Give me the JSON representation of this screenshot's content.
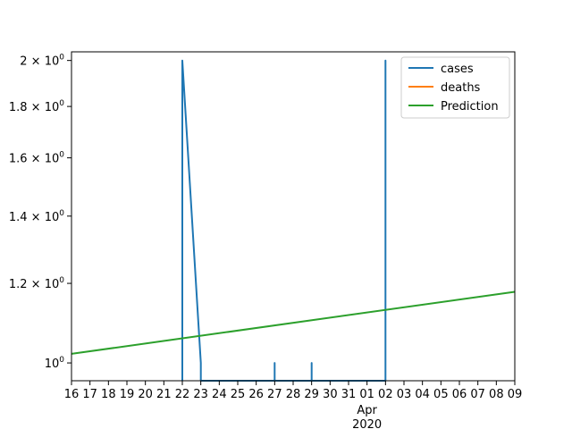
{
  "chart_data": {
    "type": "line",
    "title": "",
    "xlabel": "",
    "ylabel": "",
    "yscale": "log",
    "x_dates": [
      "2020-03-16",
      "2020-03-17",
      "2020-03-18",
      "2020-03-19",
      "2020-03-20",
      "2020-03-21",
      "2020-03-22",
      "2020-03-23",
      "2020-03-24",
      "2020-03-25",
      "2020-03-26",
      "2020-03-27",
      "2020-03-28",
      "2020-03-29",
      "2020-03-30",
      "2020-03-31",
      "2020-04-01",
      "2020-04-02",
      "2020-04-03",
      "2020-04-04",
      "2020-04-05",
      "2020-04-06",
      "2020-04-07",
      "2020-04-08",
      "2020-04-09"
    ],
    "x_tick_labels": [
      "16",
      "17",
      "18",
      "19",
      "20",
      "21",
      "22",
      "23",
      "24",
      "25",
      "26",
      "27",
      "28",
      "29",
      "30",
      "31",
      "01",
      "02",
      "03",
      "04",
      "05",
      "06",
      "07",
      "08",
      "09"
    ],
    "x_major_label_sub": [
      "Apr",
      "2020"
    ],
    "y_tick_values": [
      1.0,
      1.2,
      1.4,
      1.6,
      1.8,
      2.0
    ],
    "y_tick_mantissas": [
      "1",
      "1.2",
      "1.4",
      "1.6",
      "1.8",
      "2"
    ],
    "y_tick_base": "10",
    "y_tick_exp": "0",
    "ylim": [
      0.96,
      2.04
    ],
    "series": [
      {
        "name": "cases",
        "color": "#1f77b4",
        "points": [
          [
            6,
            0.96
          ],
          [
            6,
            2.0
          ],
          [
            7,
            1.0
          ],
          [
            7,
            0.96
          ],
          [
            11,
            0.96
          ],
          [
            11,
            1.0
          ],
          [
            11,
            0.96
          ],
          [
            13,
            0.96
          ],
          [
            13,
            1.0
          ],
          [
            13,
            0.96
          ],
          [
            17,
            0.96
          ],
          [
            17,
            2.0
          ],
          [
            17,
            0.96
          ]
        ]
      },
      {
        "name": "deaths",
        "color": "#ff7f0e",
        "points": []
      },
      {
        "name": "Prediction",
        "color": "#2ca02c",
        "points": [
          [
            0,
            1.021
          ],
          [
            24,
            1.177
          ]
        ]
      }
    ],
    "legend": [
      "cases",
      "deaths",
      "Prediction"
    ],
    "legend_position": "top-right",
    "grid": false
  }
}
